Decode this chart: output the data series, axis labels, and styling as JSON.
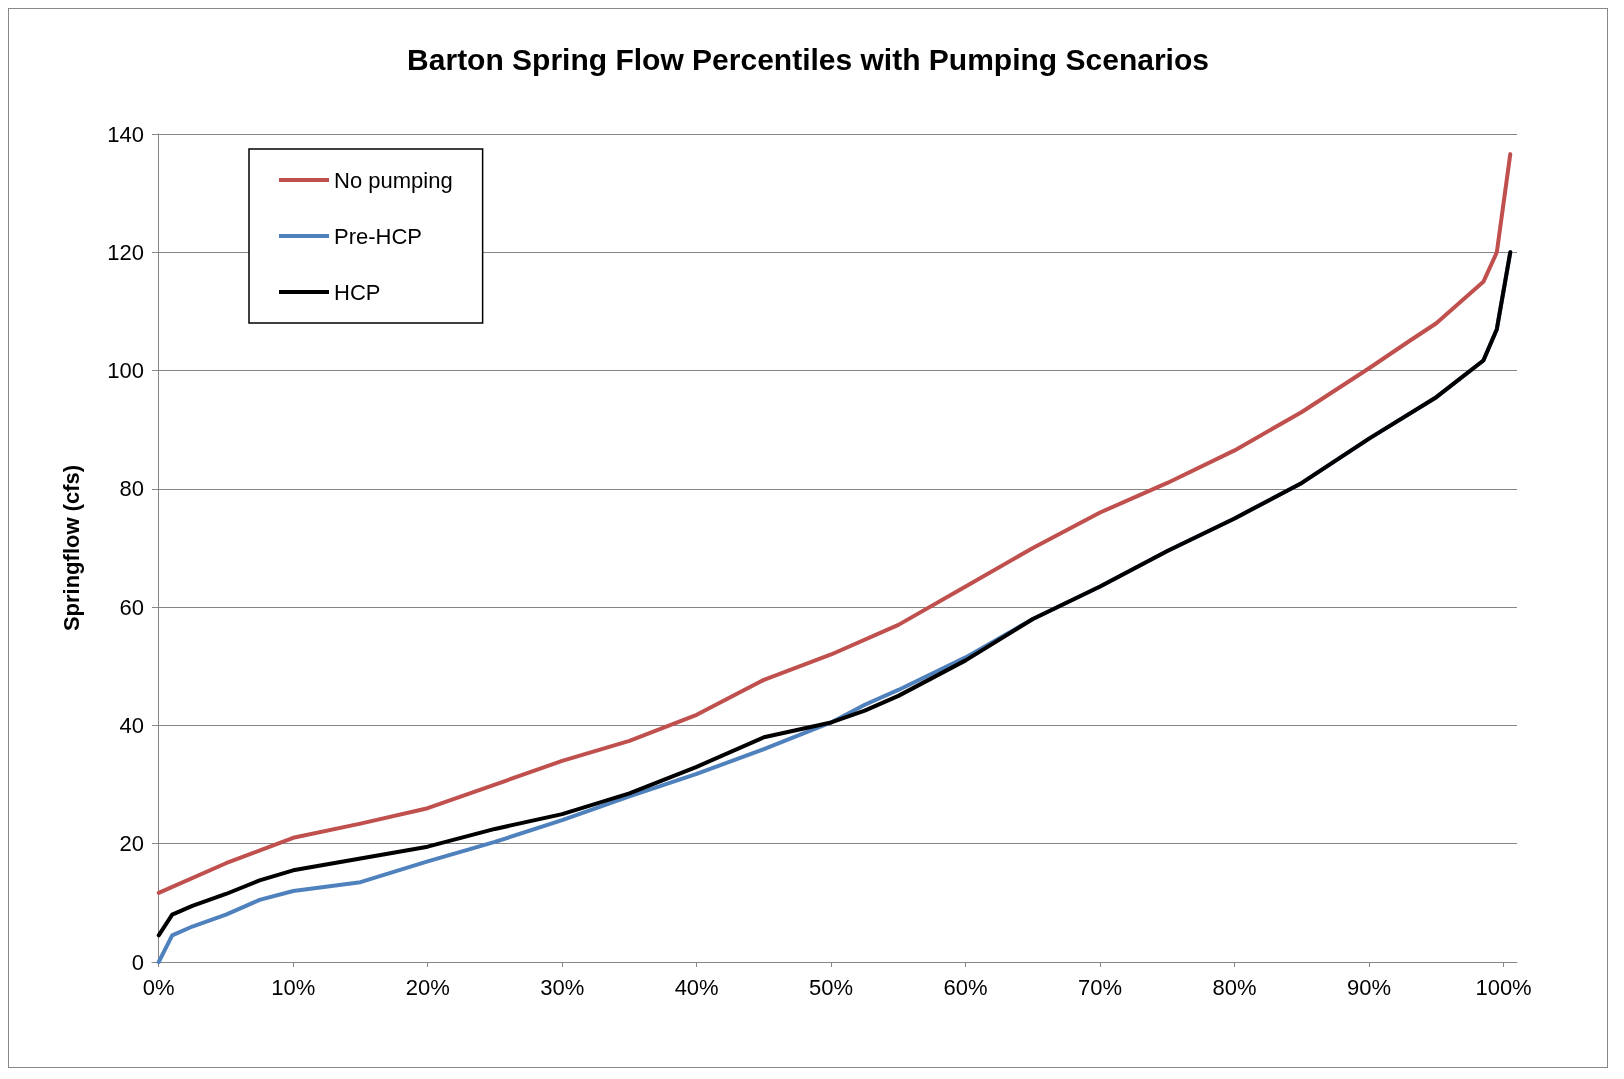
{
  "chart_data": {
    "type": "line",
    "title": "Barton Spring Flow Percentiles with Pumping Scenarios",
    "ylabel": "Springflow (cfs)",
    "xlim": [
      -0.5,
      101
    ],
    "xticks": [
      {
        "value": 0,
        "label": "0%"
      },
      {
        "value": 10,
        "label": "10%"
      },
      {
        "value": 20,
        "label": "20%"
      },
      {
        "value": 30,
        "label": "30%"
      },
      {
        "value": 40,
        "label": "40%"
      },
      {
        "value": 50,
        "label": "50%"
      },
      {
        "value": 60,
        "label": "60%"
      },
      {
        "value": 70,
        "label": "70%"
      },
      {
        "value": 80,
        "label": "80%"
      },
      {
        "value": 90,
        "label": "90%"
      },
      {
        "value": 100,
        "label": "100%"
      }
    ],
    "ylim": [
      0,
      140
    ],
    "yticks": [
      0,
      20,
      40,
      60,
      80,
      100,
      120,
      140
    ],
    "grid": "y",
    "legend": "top left",
    "marker": "none",
    "line_style": "solid",
    "series": [
      {
        "name": "No pumping",
        "color": "#c0504d",
        "x": [
          0,
          5,
          10,
          15,
          20,
          25,
          30,
          35,
          40,
          45,
          50,
          55,
          60,
          65,
          70,
          75,
          80,
          85,
          90,
          93,
          95,
          97,
          98.5,
          99.5,
          100.5
        ],
        "values": [
          11.7,
          16.7,
          21,
          23.4,
          26,
          30,
          34,
          37.4,
          41.8,
          47.7,
          52,
          57,
          63.5,
          70,
          76,
          81,
          86.5,
          93,
          100.4,
          105,
          108,
          112,
          115,
          120,
          136.6
        ]
      },
      {
        "name": "Pre-HCP",
        "color": "#4f81bd",
        "x": [
          0,
          1,
          2.5,
          5,
          7.5,
          10,
          15,
          20,
          25,
          30,
          35,
          40,
          45,
          50,
          52.5,
          55,
          60,
          65,
          70,
          75,
          80,
          85,
          90,
          95,
          98.5,
          99.5,
          100.5
        ],
        "values": [
          0,
          4.5,
          6,
          8,
          10.5,
          12,
          13.5,
          17,
          20.3,
          24,
          28,
          31.8,
          36,
          40.5,
          43.5,
          46,
          51.5,
          58,
          63.5,
          69.5,
          75,
          81,
          88.5,
          95.5,
          101.7,
          107,
          120
        ]
      },
      {
        "name": "HCP",
        "color": "#000000",
        "x": [
          0,
          1,
          2.5,
          5,
          7.5,
          10,
          15,
          20,
          25,
          30,
          35,
          40,
          45,
          50,
          52.5,
          55,
          60,
          65,
          70,
          75,
          80,
          85,
          90,
          95,
          98.5,
          99.5,
          100.5
        ],
        "values": [
          4.5,
          8,
          9.5,
          11.5,
          13.8,
          15.5,
          17.5,
          19.5,
          22.5,
          25,
          28.5,
          33,
          38,
          40.5,
          42.5,
          45,
          51,
          58,
          63.5,
          69.5,
          75,
          81,
          88.5,
          95.5,
          101.7,
          107,
          120
        ]
      }
    ]
  }
}
